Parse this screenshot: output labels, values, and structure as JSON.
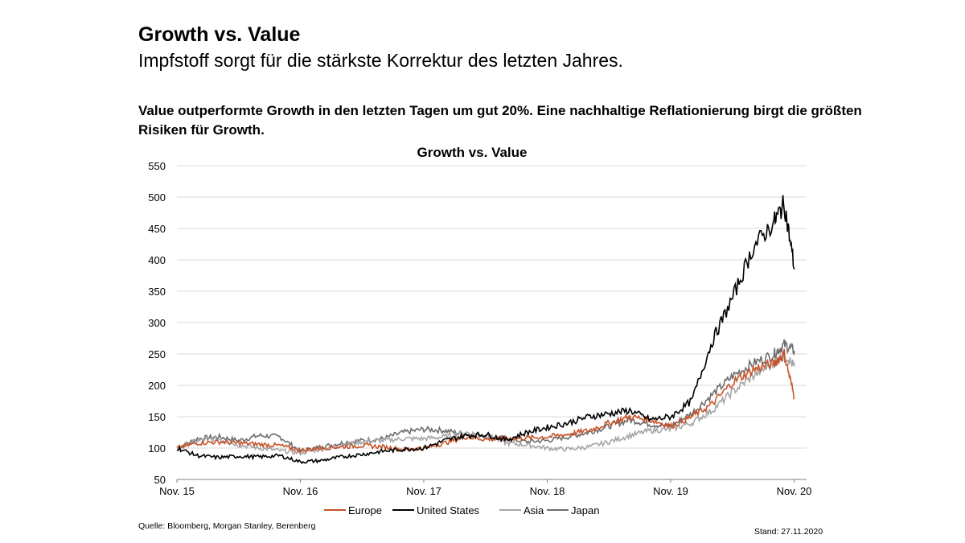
{
  "slide": {
    "title": "Growth vs. Value",
    "subtitle": "Impfstoff sorgt für die stärkste Korrektur des letzten Jahres.",
    "headline": "Value outperformte Growth in den letzten Tagen um gut 20%. Eine nachhaltige Reflationierung birgt die größten Risiken für Growth.",
    "source": "Quelle: Bloomberg, Morgan Stanley, Berenberg",
    "stand": "Stand: 27.11.2020"
  },
  "chart_data": {
    "type": "line",
    "title": "Growth vs. Value",
    "xlabel": "",
    "ylabel": "",
    "ylim": [
      50,
      550
    ],
    "yticks": [
      50,
      100,
      150,
      200,
      250,
      300,
      350,
      400,
      450,
      500,
      550
    ],
    "xlim": [
      "2015-11",
      "2020-11"
    ],
    "x_tick_labels": [
      "Nov. 15",
      "Nov. 16",
      "Nov. 17",
      "Nov. 18",
      "Nov. 19",
      "Nov. 20"
    ],
    "grid": "horizontal",
    "legend": "bottom",
    "x": [
      "2015-11",
      "2016-01",
      "2016-03",
      "2016-05",
      "2016-07",
      "2016-09",
      "2016-11",
      "2017-01",
      "2017-03",
      "2017-05",
      "2017-07",
      "2017-09",
      "2017-11",
      "2018-01",
      "2018-03",
      "2018-05",
      "2018-07",
      "2018-09",
      "2018-11",
      "2019-01",
      "2019-03",
      "2019-05",
      "2019-07",
      "2019-09",
      "2019-11",
      "2020-01",
      "2020-03",
      "2020-05",
      "2020-07",
      "2020-09",
      "2020-10",
      "2020-11"
    ],
    "series": [
      {
        "name": "Europe",
        "color": "#c8532a",
        "values": [
          100,
          108,
          110,
          108,
          106,
          104,
          96,
          100,
          102,
          104,
          102,
          98,
          100,
          108,
          118,
          114,
          115,
          116,
          118,
          122,
          128,
          140,
          150,
          145,
          135,
          150,
          170,
          205,
          225,
          235,
          250,
          180
        ]
      },
      {
        "name": "United States",
        "color": "#000000",
        "values": [
          100,
          88,
          85,
          87,
          86,
          88,
          78,
          80,
          86,
          90,
          95,
          98,
          100,
          112,
          120,
          122,
          113,
          125,
          133,
          140,
          150,
          155,
          160,
          145,
          150,
          175,
          270,
          340,
          420,
          460,
          490,
          385
        ]
      },
      {
        "name": "Asia",
        "color": "#a6a6a6",
        "values": [
          100,
          112,
          115,
          105,
          100,
          96,
          92,
          98,
          105,
          110,
          112,
          115,
          115,
          118,
          125,
          120,
          108,
          105,
          100,
          98,
          102,
          110,
          120,
          128,
          130,
          140,
          160,
          190,
          215,
          235,
          250,
          230
        ]
      },
      {
        "name": "Japan",
        "color": "#6e6e6e",
        "values": [
          100,
          115,
          118,
          112,
          120,
          118,
          95,
          102,
          108,
          112,
          115,
          125,
          130,
          128,
          122,
          120,
          115,
          110,
          112,
          118,
          125,
          135,
          145,
          138,
          135,
          155,
          185,
          215,
          235,
          250,
          265,
          255
        ]
      }
    ]
  }
}
